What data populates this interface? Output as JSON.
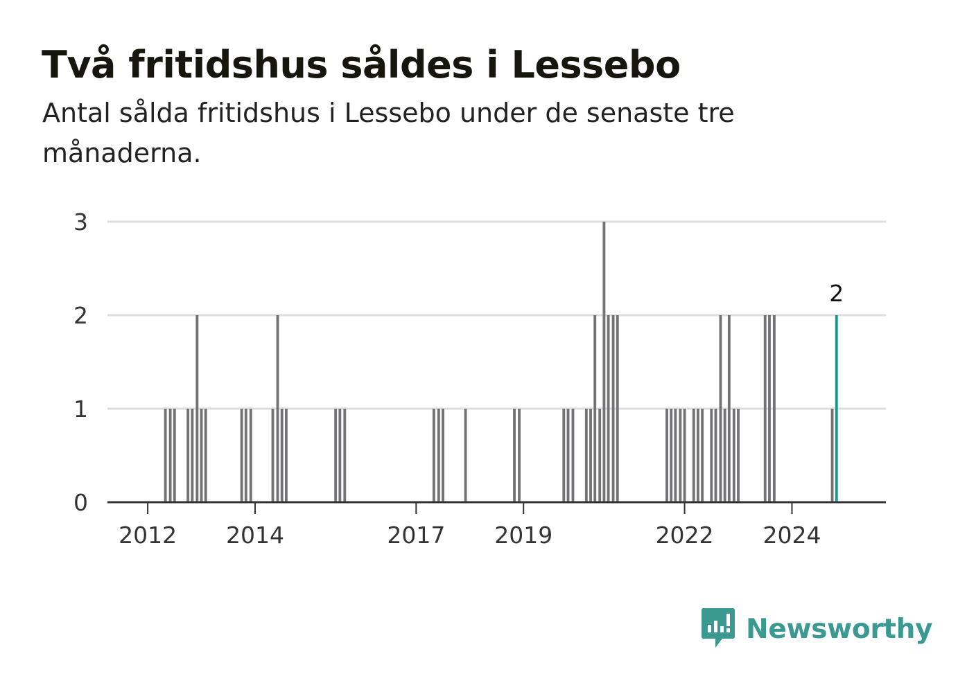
{
  "header": {
    "title": "Två fritidshus såldes i Lessebo",
    "subtitle": "Antal sålda fritidshus i Lessebo under de senaste tre månaderna."
  },
  "brand": {
    "name": "Newsworthy",
    "icon": "newsworthy-logo-icon",
    "color": "#3a9a92"
  },
  "colors": {
    "bar": "#737275",
    "highlight": "#139b92",
    "grid": "#dedede",
    "axis": "#333333"
  },
  "chart_data": {
    "type": "bar",
    "x_domain": [
      2011.25,
      2025.75
    ],
    "ylim": [
      0,
      3
    ],
    "y_ticks": [
      0,
      1,
      2,
      3
    ],
    "x_ticks": [
      {
        "value": 2012,
        "label": "2012"
      },
      {
        "value": 2014,
        "label": "2014"
      },
      {
        "value": 2017,
        "label": "2017"
      },
      {
        "value": 2019,
        "label": "2019"
      },
      {
        "value": 2022,
        "label": "2022"
      },
      {
        "value": 2024,
        "label": "2024"
      }
    ],
    "grid": true,
    "bar_width_years": 0.05,
    "bars": [
      {
        "x": 2012.33,
        "y": 1
      },
      {
        "x": 2012.42,
        "y": 1
      },
      {
        "x": 2012.5,
        "y": 1
      },
      {
        "x": 2012.75,
        "y": 1
      },
      {
        "x": 2012.83,
        "y": 1
      },
      {
        "x": 2012.92,
        "y": 2
      },
      {
        "x": 2013.0,
        "y": 1
      },
      {
        "x": 2013.08,
        "y": 1
      },
      {
        "x": 2013.75,
        "y": 1
      },
      {
        "x": 2013.83,
        "y": 1
      },
      {
        "x": 2013.92,
        "y": 1
      },
      {
        "x": 2014.33,
        "y": 1
      },
      {
        "x": 2014.42,
        "y": 2
      },
      {
        "x": 2014.5,
        "y": 1
      },
      {
        "x": 2014.58,
        "y": 1
      },
      {
        "x": 2015.5,
        "y": 1
      },
      {
        "x": 2015.58,
        "y": 1
      },
      {
        "x": 2015.67,
        "y": 1
      },
      {
        "x": 2017.33,
        "y": 1
      },
      {
        "x": 2017.42,
        "y": 1
      },
      {
        "x": 2017.5,
        "y": 1
      },
      {
        "x": 2017.92,
        "y": 1
      },
      {
        "x": 2018.83,
        "y": 1
      },
      {
        "x": 2018.92,
        "y": 1
      },
      {
        "x": 2019.75,
        "y": 1
      },
      {
        "x": 2019.83,
        "y": 1
      },
      {
        "x": 2019.92,
        "y": 1
      },
      {
        "x": 2020.17,
        "y": 1
      },
      {
        "x": 2020.25,
        "y": 1
      },
      {
        "x": 2020.33,
        "y": 2
      },
      {
        "x": 2020.42,
        "y": 1
      },
      {
        "x": 2020.5,
        "y": 3
      },
      {
        "x": 2020.58,
        "y": 2
      },
      {
        "x": 2020.67,
        "y": 2
      },
      {
        "x": 2020.75,
        "y": 2
      },
      {
        "x": 2021.67,
        "y": 1
      },
      {
        "x": 2021.75,
        "y": 1
      },
      {
        "x": 2021.83,
        "y": 1
      },
      {
        "x": 2021.92,
        "y": 1
      },
      {
        "x": 2022.0,
        "y": 1
      },
      {
        "x": 2022.17,
        "y": 1
      },
      {
        "x": 2022.25,
        "y": 1
      },
      {
        "x": 2022.33,
        "y": 1
      },
      {
        "x": 2022.5,
        "y": 1
      },
      {
        "x": 2022.58,
        "y": 1
      },
      {
        "x": 2022.67,
        "y": 2
      },
      {
        "x": 2022.75,
        "y": 1
      },
      {
        "x": 2022.83,
        "y": 2
      },
      {
        "x": 2022.92,
        "y": 1
      },
      {
        "x": 2023.0,
        "y": 1
      },
      {
        "x": 2023.5,
        "y": 2
      },
      {
        "x": 2023.58,
        "y": 2
      },
      {
        "x": 2023.67,
        "y": 2
      },
      {
        "x": 2024.75,
        "y": 1
      },
      {
        "x": 2024.83,
        "y": 2,
        "highlight": true,
        "label": "2"
      }
    ]
  }
}
